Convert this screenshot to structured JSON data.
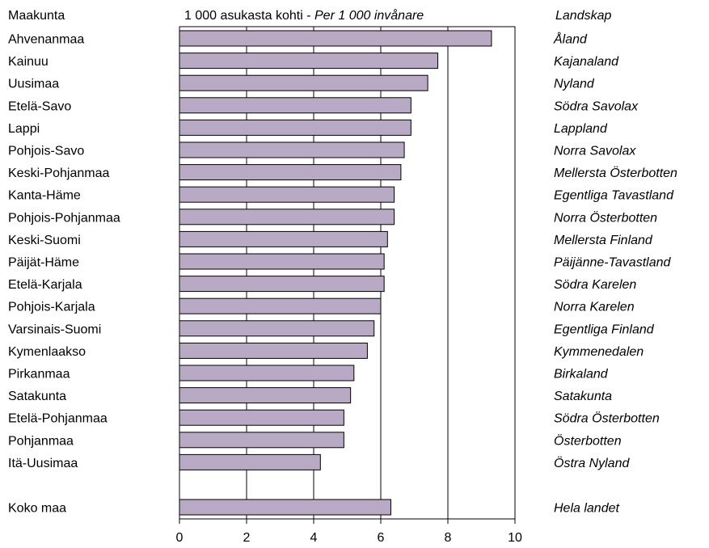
{
  "chart_data": {
    "type": "bar",
    "orientation": "horizontal",
    "header_left": "Maakunta",
    "header_center_fi": "1 000 asukasta kohti -",
    "header_center_sv": "Per 1 000 invånare",
    "header_right": "Landskap",
    "categories": [
      "Ahvenanmaa",
      "Kainuu",
      "Uusimaa",
      "Etelä-Savo",
      "Lappi",
      "Pohjois-Savo",
      "Keski-Pohjanmaa",
      "Kanta-Häme",
      "Pohjois-Pohjanmaa",
      "Keski-Suomi",
      "Päijät-Häme",
      "Etelä-Karjala",
      "Pohjois-Karjala",
      "Varsinais-Suomi",
      "Kymenlaakso",
      "Pirkanmaa",
      "Satakunta",
      "Etelä-Pohjanmaa",
      "Pohjanmaa",
      "Itä-Uusimaa"
    ],
    "categories_sv": [
      "Åland",
      "Kajanaland",
      "Nyland",
      "Södra Savolax",
      "Lappland",
      "Norra Savolax",
      "Mellersta Österbotten",
      "Egentliga Tavastland",
      "Norra Österbotten",
      "Mellersta Finland",
      "Päijänne-Tavastland",
      "Södra Karelen",
      "Norra Karelen",
      "Egentliga Finland",
      "Kymmenedalen",
      "Birkaland",
      "Satakunta",
      "Södra Österbotten",
      "Österbotten",
      "Östra Nyland"
    ],
    "values": [
      9.3,
      7.7,
      7.4,
      6.9,
      6.9,
      6.7,
      6.6,
      6.4,
      6.4,
      6.2,
      6.1,
      6.1,
      6.0,
      5.8,
      5.6,
      5.2,
      5.1,
      4.9,
      4.9,
      4.2
    ],
    "total": {
      "label": "Koko maa",
      "label_sv": "Hela landet",
      "value": 6.3
    },
    "xlim": [
      0,
      10
    ],
    "xticks": [
      0,
      2,
      4,
      6,
      8,
      10
    ],
    "grid": true,
    "bar_color": "#b8a9c4",
    "bar_stroke": "#000000"
  }
}
